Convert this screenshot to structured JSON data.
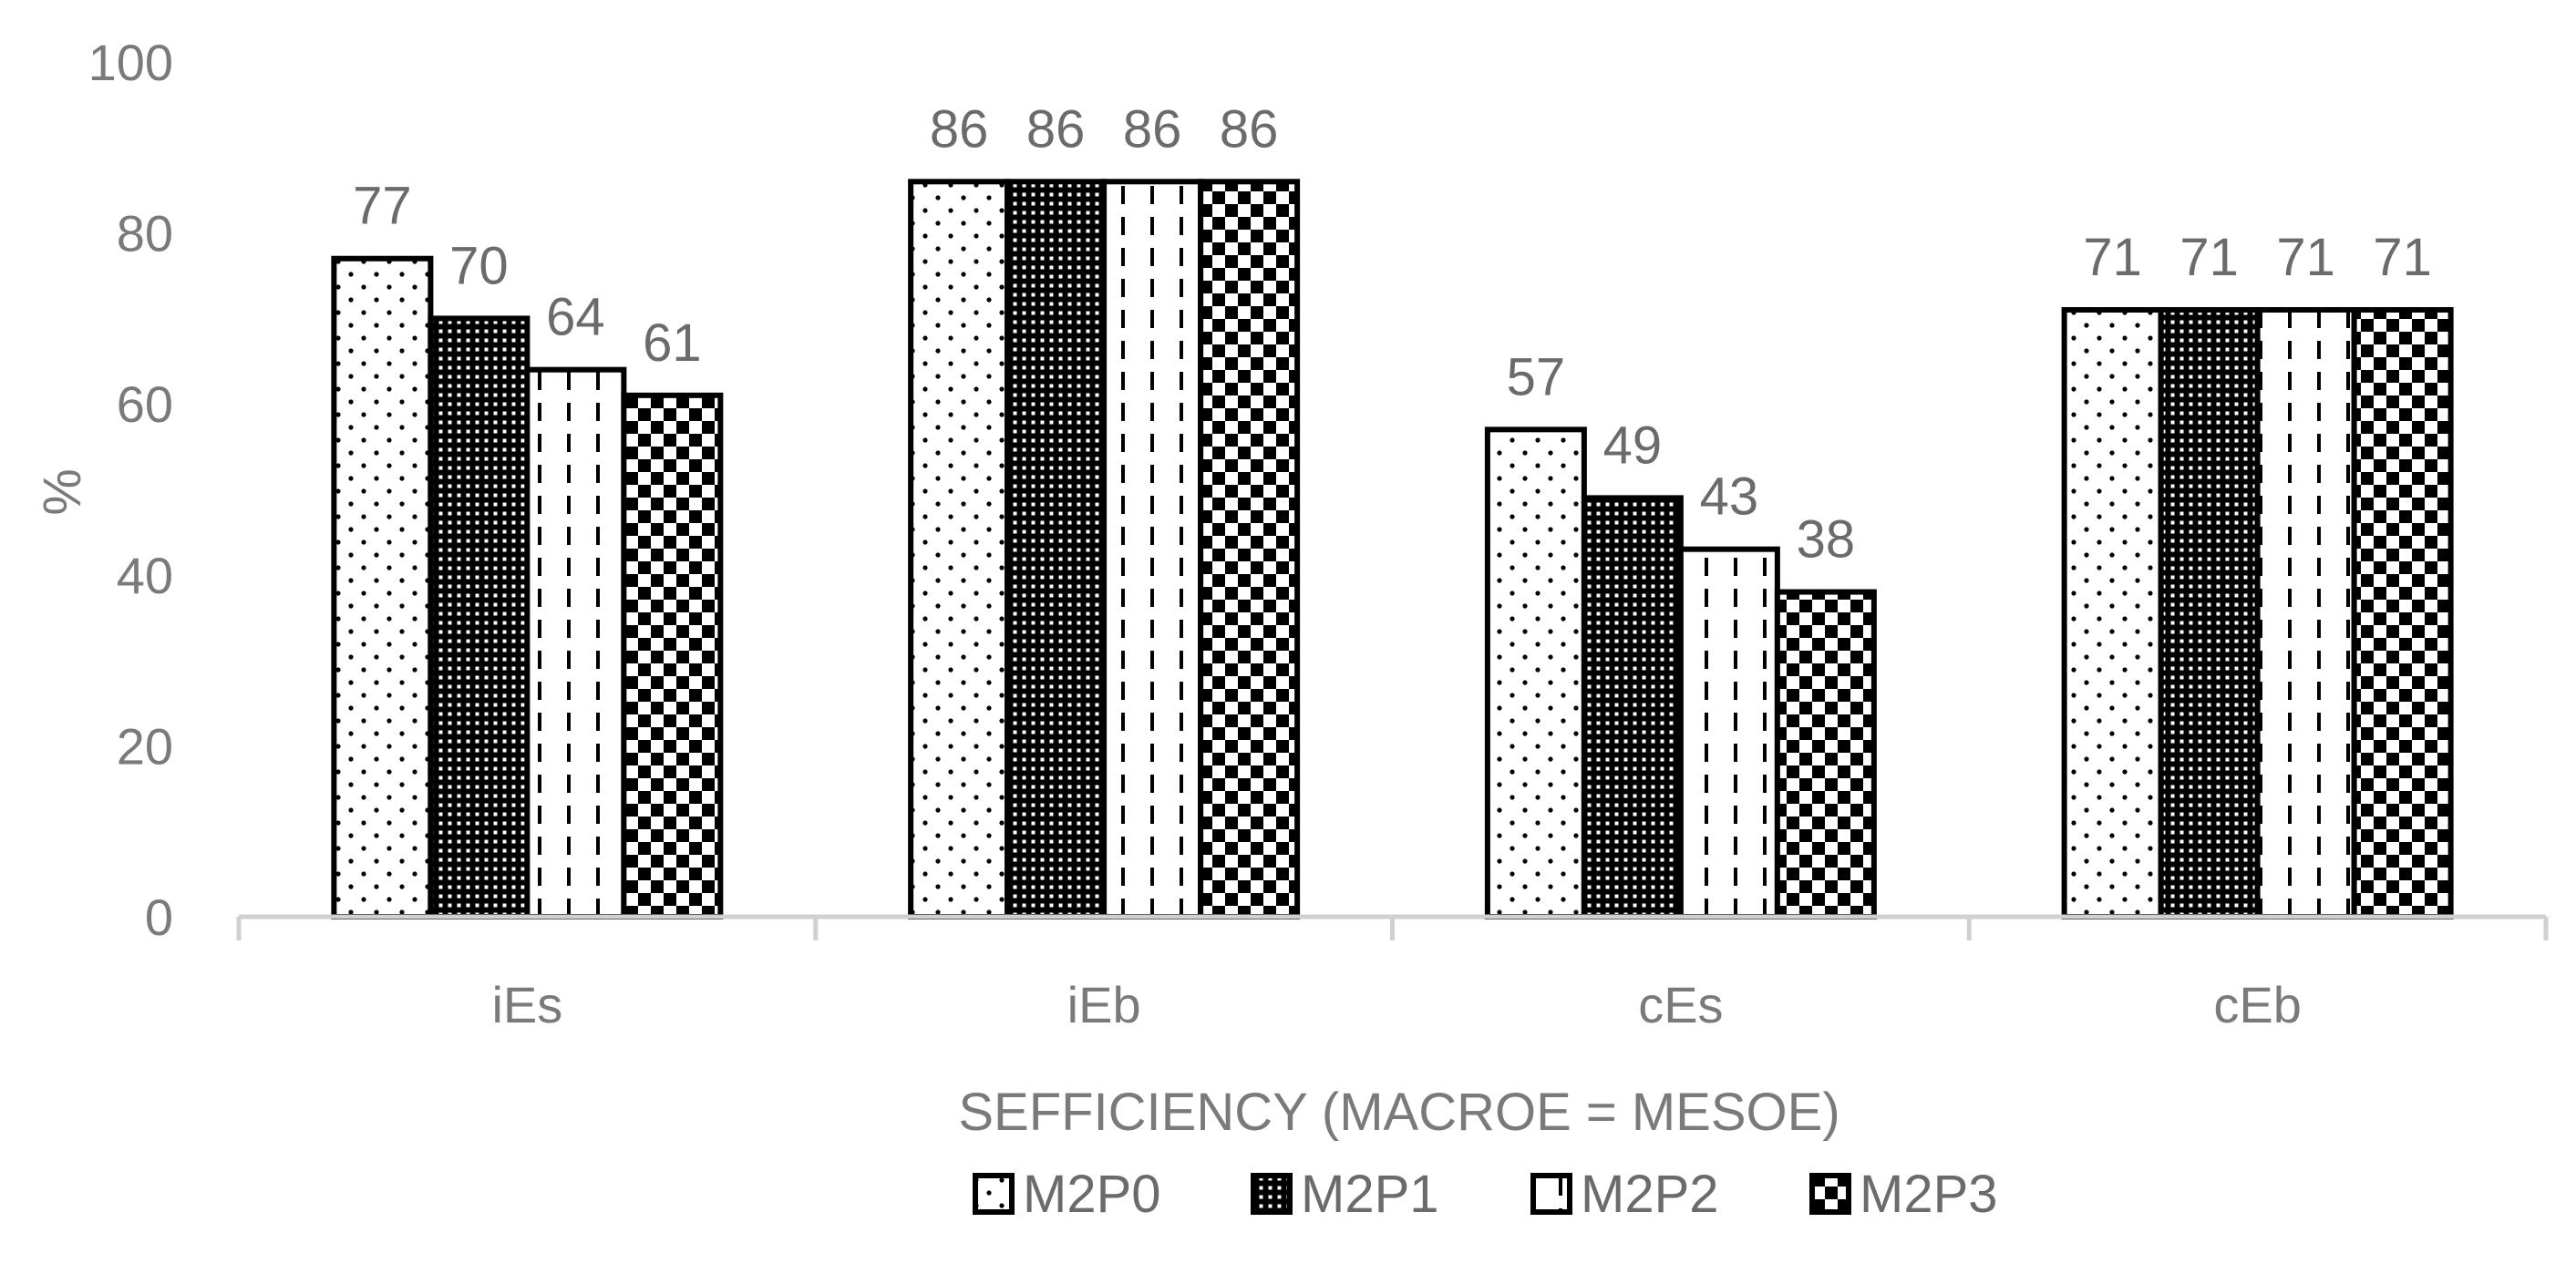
{
  "chart_data": {
    "type": "bar",
    "title": "",
    "xlabel": "SEFFICIENCY (MACROE = MESOE)",
    "ylabel": "%",
    "ylim": [
      0,
      100
    ],
    "yticks": [
      0,
      20,
      40,
      60,
      80,
      100
    ],
    "grid": false,
    "legend_position": "bottom",
    "categories": [
      "iEs",
      "iEb",
      "cEs",
      "cEb"
    ],
    "series": [
      {
        "name": "M2P0",
        "pattern": "dots",
        "values": [
          77,
          86,
          57,
          71
        ]
      },
      {
        "name": "M2P1",
        "pattern": "dense-grid",
        "values": [
          70,
          86,
          49,
          71
        ]
      },
      {
        "name": "M2P2",
        "pattern": "dashed-lines",
        "values": [
          64,
          86,
          43,
          71
        ]
      },
      {
        "name": "M2P3",
        "pattern": "checker",
        "values": [
          61,
          86,
          38,
          71
        ]
      }
    ],
    "data_labels": [
      [
        "77",
        "86",
        "57",
        "71"
      ],
      [
        "70",
        "86",
        "49",
        "71"
      ],
      [
        "64",
        "86",
        "43",
        "71"
      ],
      [
        "61",
        "86",
        "38",
        "71"
      ]
    ],
    "colors": {
      "bar_outline": "#000000",
      "axis": "#d0d0d0",
      "text": "#7a7a7a"
    }
  }
}
